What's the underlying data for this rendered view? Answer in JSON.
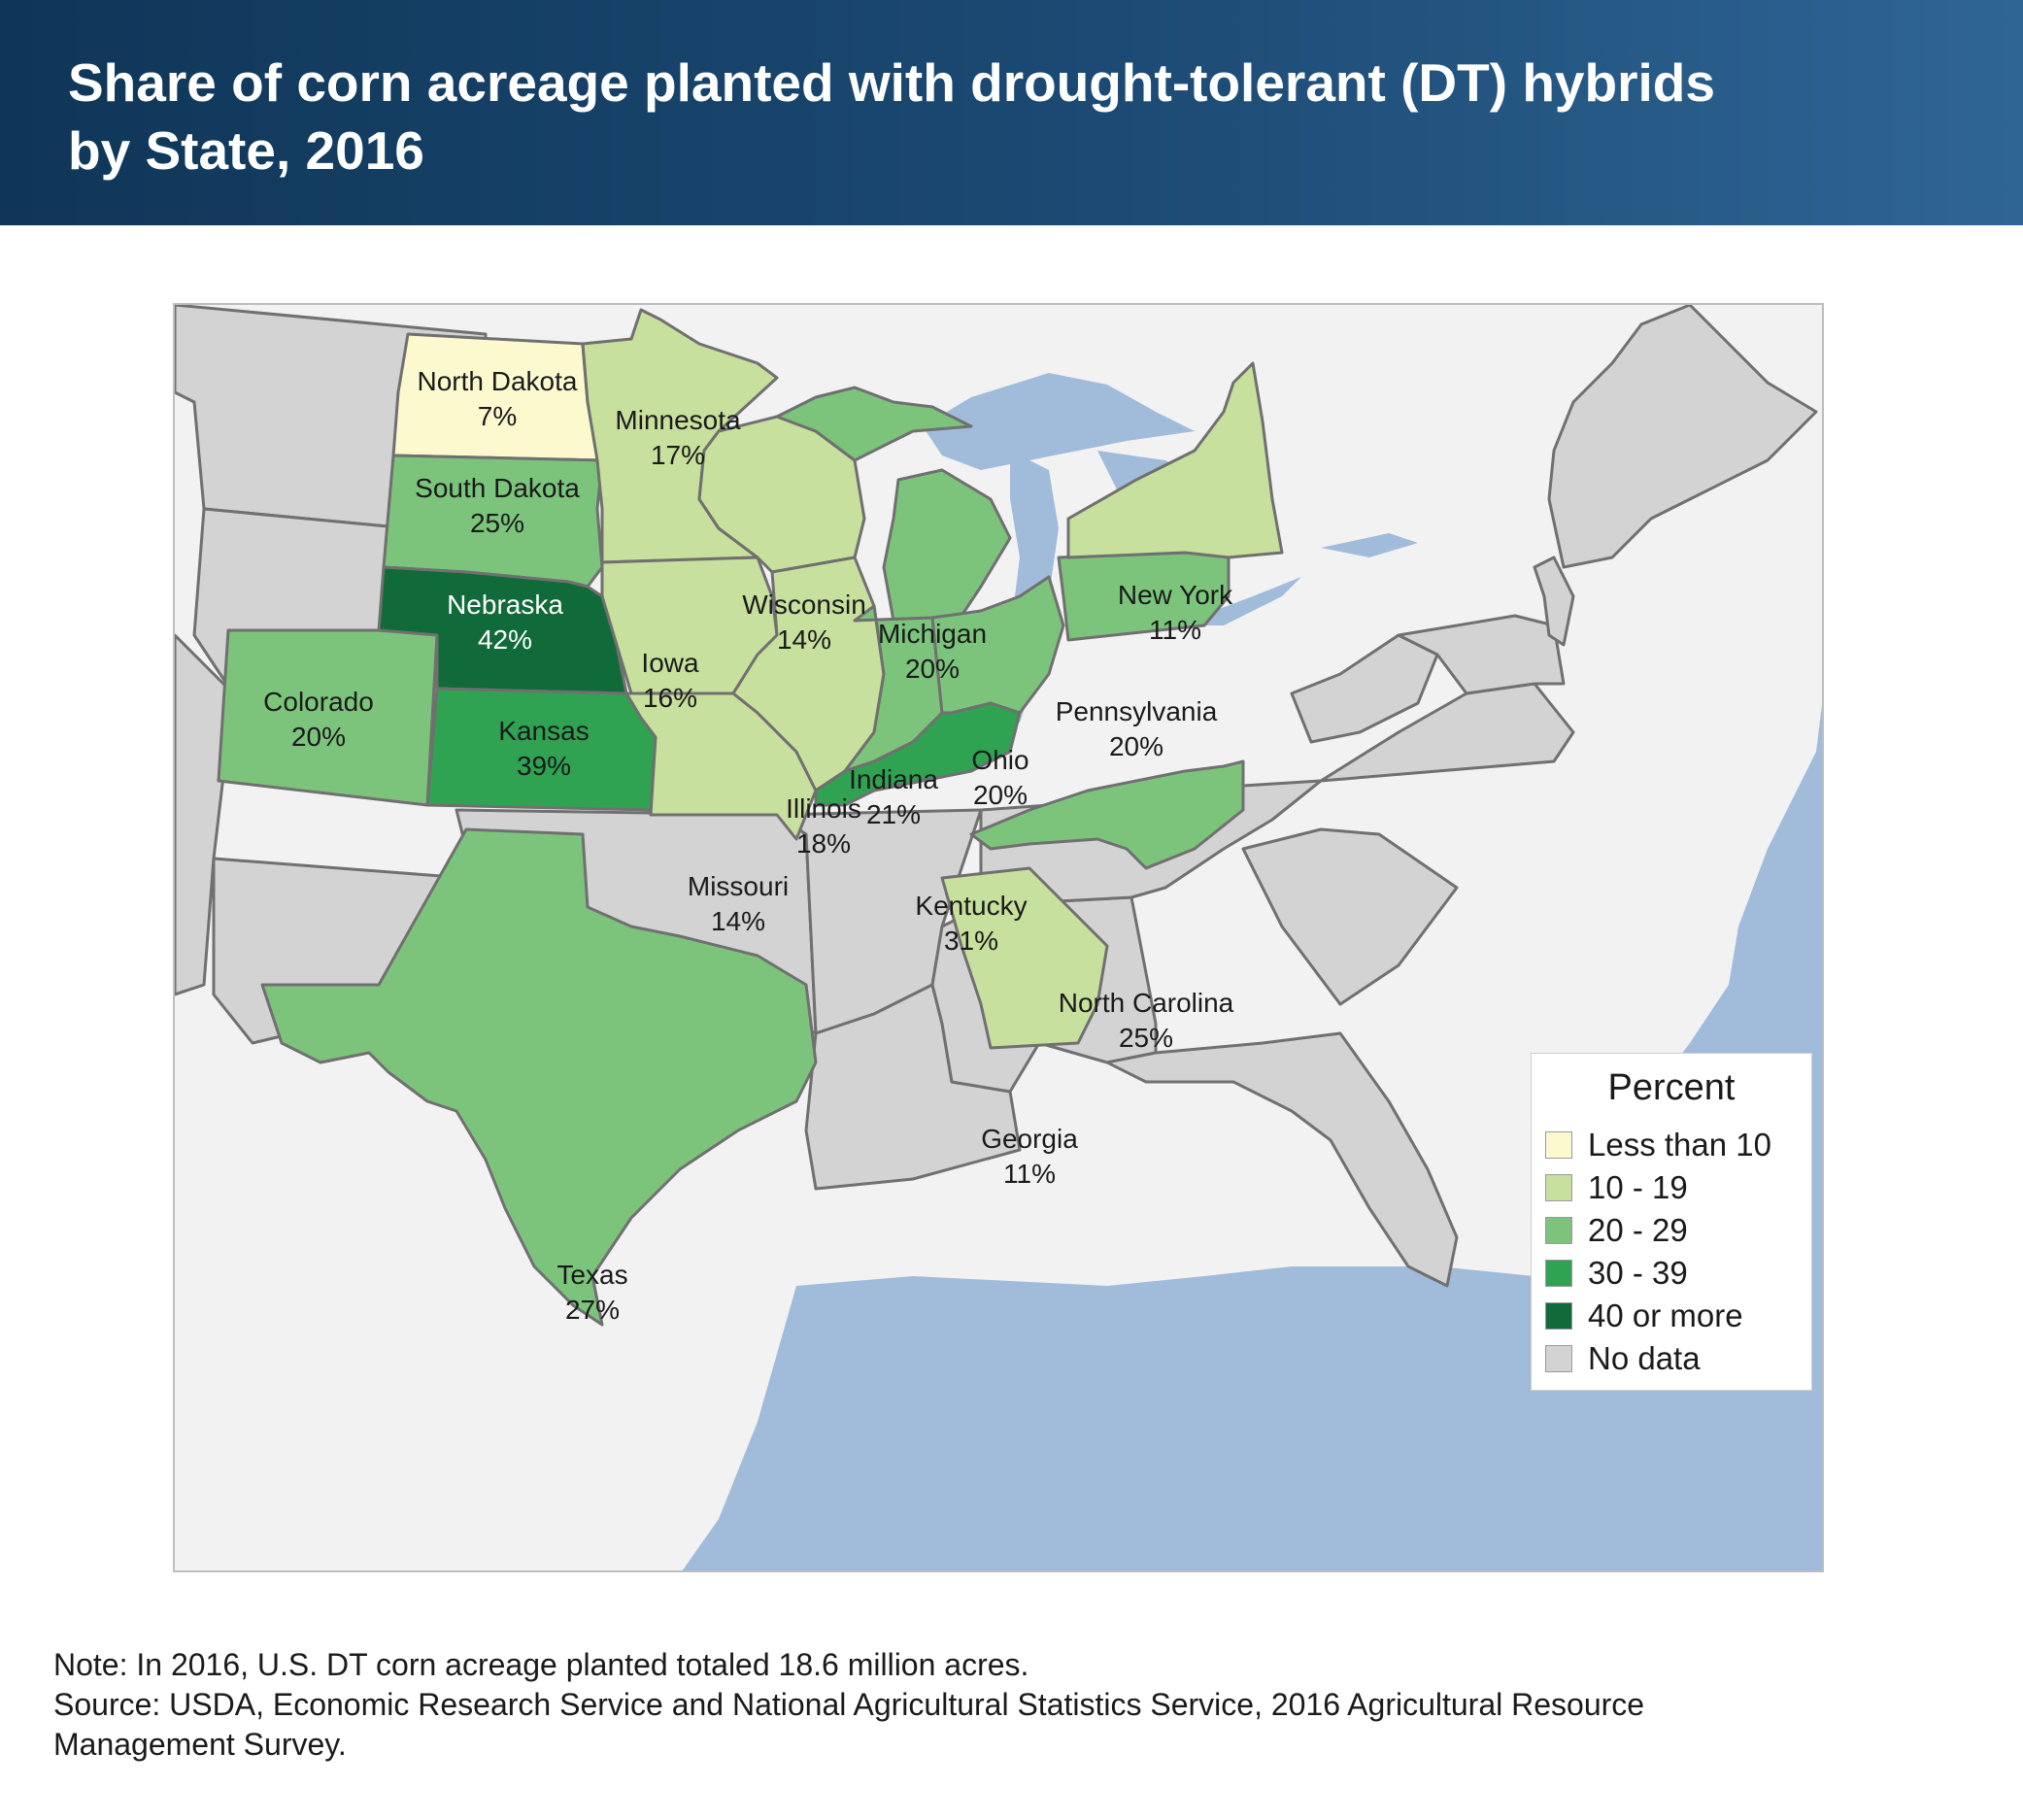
{
  "title_line1": "Share of corn acreage planted with drought-tolerant (DT) hybrids",
  "title_line2": "by State, 2016",
  "map_data": {
    "type": "choropleth",
    "region": "United States (central and eastern)",
    "states": [
      {
        "name": "North Dakota",
        "value_label": "7%",
        "value": 7,
        "category": "Less than 10"
      },
      {
        "name": "South Dakota",
        "value_label": "25%",
        "value": 25,
        "category": "20 - 29"
      },
      {
        "name": "Nebraska",
        "value_label": "42%",
        "value": 42,
        "category": "40 or more"
      },
      {
        "name": "Kansas",
        "value_label": "39%",
        "value": 39,
        "category": "30 - 39"
      },
      {
        "name": "Colorado",
        "value_label": "20%",
        "value": 20,
        "category": "20 - 29"
      },
      {
        "name": "Texas",
        "value_label": "27%",
        "value": 27,
        "category": "20 - 29"
      },
      {
        "name": "Minnesota",
        "value_label": "17%",
        "value": 17,
        "category": "10 - 19"
      },
      {
        "name": "Iowa",
        "value_label": "16%",
        "value": 16,
        "category": "10 - 19"
      },
      {
        "name": "Missouri",
        "value_label": "14%",
        "value": 14,
        "category": "10 - 19"
      },
      {
        "name": "Wisconsin",
        "value_label": "14%",
        "value": 14,
        "category": "10 - 19"
      },
      {
        "name": "Illinois",
        "value_label": "18%",
        "value": 18,
        "category": "10 - 19"
      },
      {
        "name": "Michigan",
        "value_label": "20%",
        "value": 20,
        "category": "20 - 29"
      },
      {
        "name": "Indiana",
        "value_label": "21%",
        "value": 21,
        "category": "20 - 29"
      },
      {
        "name": "Ohio",
        "value_label": "20%",
        "value": 20,
        "category": "20 - 29"
      },
      {
        "name": "Kentucky",
        "value_label": "31%",
        "value": 31,
        "category": "30 - 39"
      },
      {
        "name": "Pennsylvania",
        "value_label": "20%",
        "value": 20,
        "category": "20 - 29"
      },
      {
        "name": "New York",
        "value_label": "11%",
        "value": 11,
        "category": "10 - 19"
      },
      {
        "name": "North Carolina",
        "value_label": "25%",
        "value": 25,
        "category": "20 - 29"
      },
      {
        "name": "Georgia",
        "value_label": "11%",
        "value": 11,
        "category": "10 - 19"
      }
    ]
  },
  "colors": {
    "lt10": "#fdf9cf",
    "c10_19": "#c8e09e",
    "c20_29": "#7cc47c",
    "c30_39": "#2fa352",
    "c40plus": "#106a39",
    "nodata": "#d3d3d3",
    "water": "#a1bbda",
    "land_outside": "#f2f2f2"
  },
  "legend": {
    "title": "Percent",
    "items": [
      {
        "label": "Less than 10",
        "color": "#fdf9cf"
      },
      {
        "label": "10 - 19",
        "color": "#c8e09e"
      },
      {
        "label": "20 - 29",
        "color": "#7cc47c"
      },
      {
        "label": "30 - 39",
        "color": "#2fa352"
      },
      {
        "label": "40 or more",
        "color": "#106a39"
      },
      {
        "label": "No data",
        "color": "#d3d3d3"
      }
    ]
  },
  "note": "Note: In 2016, U.S. DT corn acreage planted totaled 18.6 million acres.",
  "source_line1": "Source: USDA, Economic Research Service and National Agricultural Statistics Service, 2016 Agricultural Resource",
  "source_line2": "Management Survey."
}
